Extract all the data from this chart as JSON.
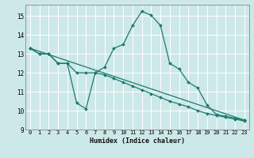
{
  "xlabel": "Humidex (Indice chaleur)",
  "background_color": "#cde8e8",
  "grid_color": "#ffffff",
  "line_color": "#1a7a6e",
  "xlim": [
    -0.5,
    23.5
  ],
  "ylim": [
    9.0,
    15.6
  ],
  "yticks": [
    9,
    10,
    11,
    12,
    13,
    14,
    15
  ],
  "xticks": [
    0,
    1,
    2,
    3,
    4,
    5,
    6,
    7,
    8,
    9,
    10,
    11,
    12,
    13,
    14,
    15,
    16,
    17,
    18,
    19,
    20,
    21,
    22,
    23
  ],
  "line1_x": [
    0,
    1,
    2,
    3,
    4,
    5,
    6,
    7,
    8,
    9,
    10,
    11,
    12,
    13,
    14,
    15,
    16,
    17,
    18,
    19,
    20,
    21,
    22,
    23
  ],
  "line1_y": [
    13.3,
    13.0,
    13.0,
    12.5,
    12.5,
    10.4,
    10.1,
    12.0,
    12.3,
    13.3,
    13.5,
    14.5,
    15.25,
    15.05,
    14.5,
    12.5,
    12.2,
    11.5,
    11.2,
    10.3,
    9.8,
    9.7,
    9.6,
    9.5
  ],
  "line2_x": [
    0,
    23
  ],
  "line2_y": [
    13.3,
    9.5
  ],
  "line3_x": [
    0,
    1,
    2,
    3,
    4,
    5,
    6,
    7,
    8,
    9,
    10,
    11,
    12,
    13,
    14,
    15,
    16,
    17,
    18,
    19,
    20,
    21,
    22,
    23
  ],
  "line3_y": [
    13.3,
    13.0,
    13.0,
    12.5,
    12.5,
    12.0,
    12.0,
    12.0,
    11.9,
    11.7,
    11.5,
    11.3,
    11.1,
    10.9,
    10.7,
    10.5,
    10.35,
    10.2,
    10.0,
    9.85,
    9.75,
    9.65,
    9.55,
    9.45
  ]
}
